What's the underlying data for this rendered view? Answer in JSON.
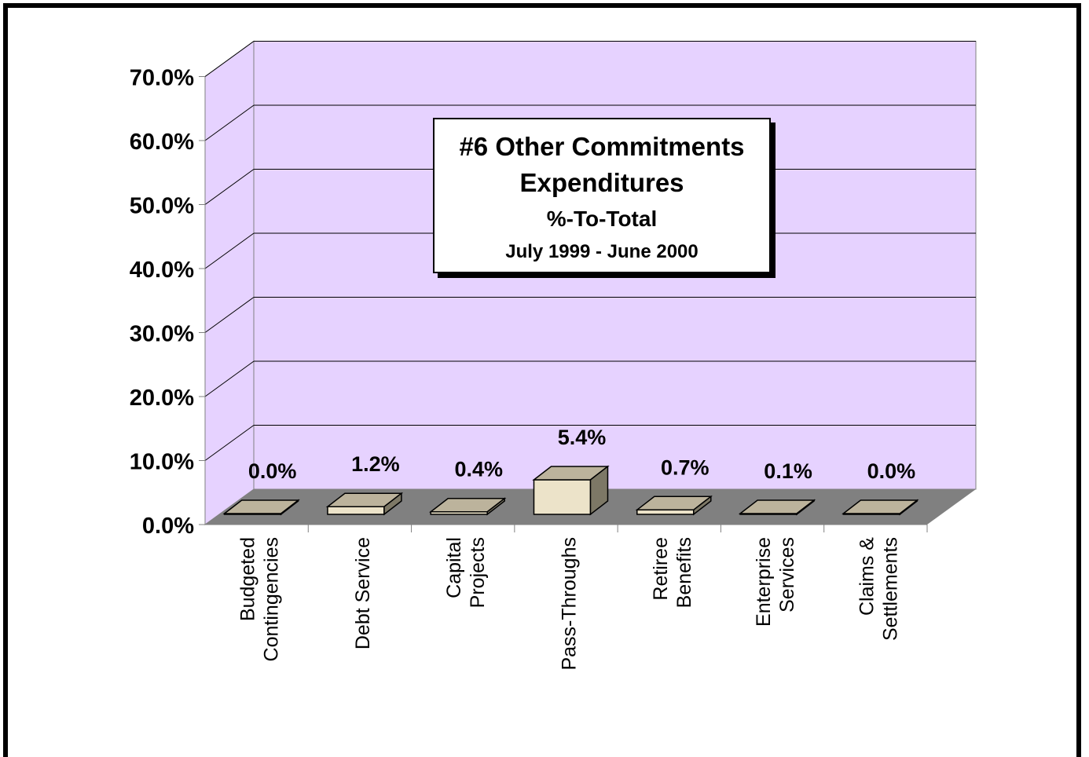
{
  "chart_data": {
    "type": "bar",
    "title_lines": [
      "#6 Other Commitments",
      "Expenditures",
      "%-To-Total",
      "July 1999 - June 2000"
    ],
    "categories": [
      [
        "Budgeted",
        "Contingencies"
      ],
      [
        "Debt Service"
      ],
      [
        "Capital",
        "Projects"
      ],
      [
        "Pass-Throughs"
      ],
      [
        "Retiree",
        "Benefits"
      ],
      [
        "Enterprise",
        "Services"
      ],
      [
        "Claims &",
        "Settlements"
      ]
    ],
    "values": [
      0.0,
      1.2,
      0.4,
      5.4,
      0.7,
      0.1,
      0.0
    ],
    "data_labels": [
      "0.0%",
      "1.2%",
      "0.4%",
      "5.4%",
      "0.7%",
      "0.1%",
      "0.0%"
    ],
    "y_ticks": [
      "0.0%",
      "10.0%",
      "20.0%",
      "30.0%",
      "40.0%",
      "50.0%",
      "60.0%",
      "70.0%"
    ],
    "ylim": [
      0,
      70
    ],
    "grid": true,
    "colors": {
      "back_wall": "#e6d2ff",
      "floor": "#808080",
      "bar_front": "#ece3c9",
      "bar_top": "#bcb39c",
      "bar_side": "#7d7866",
      "axis": "#808080"
    }
  }
}
